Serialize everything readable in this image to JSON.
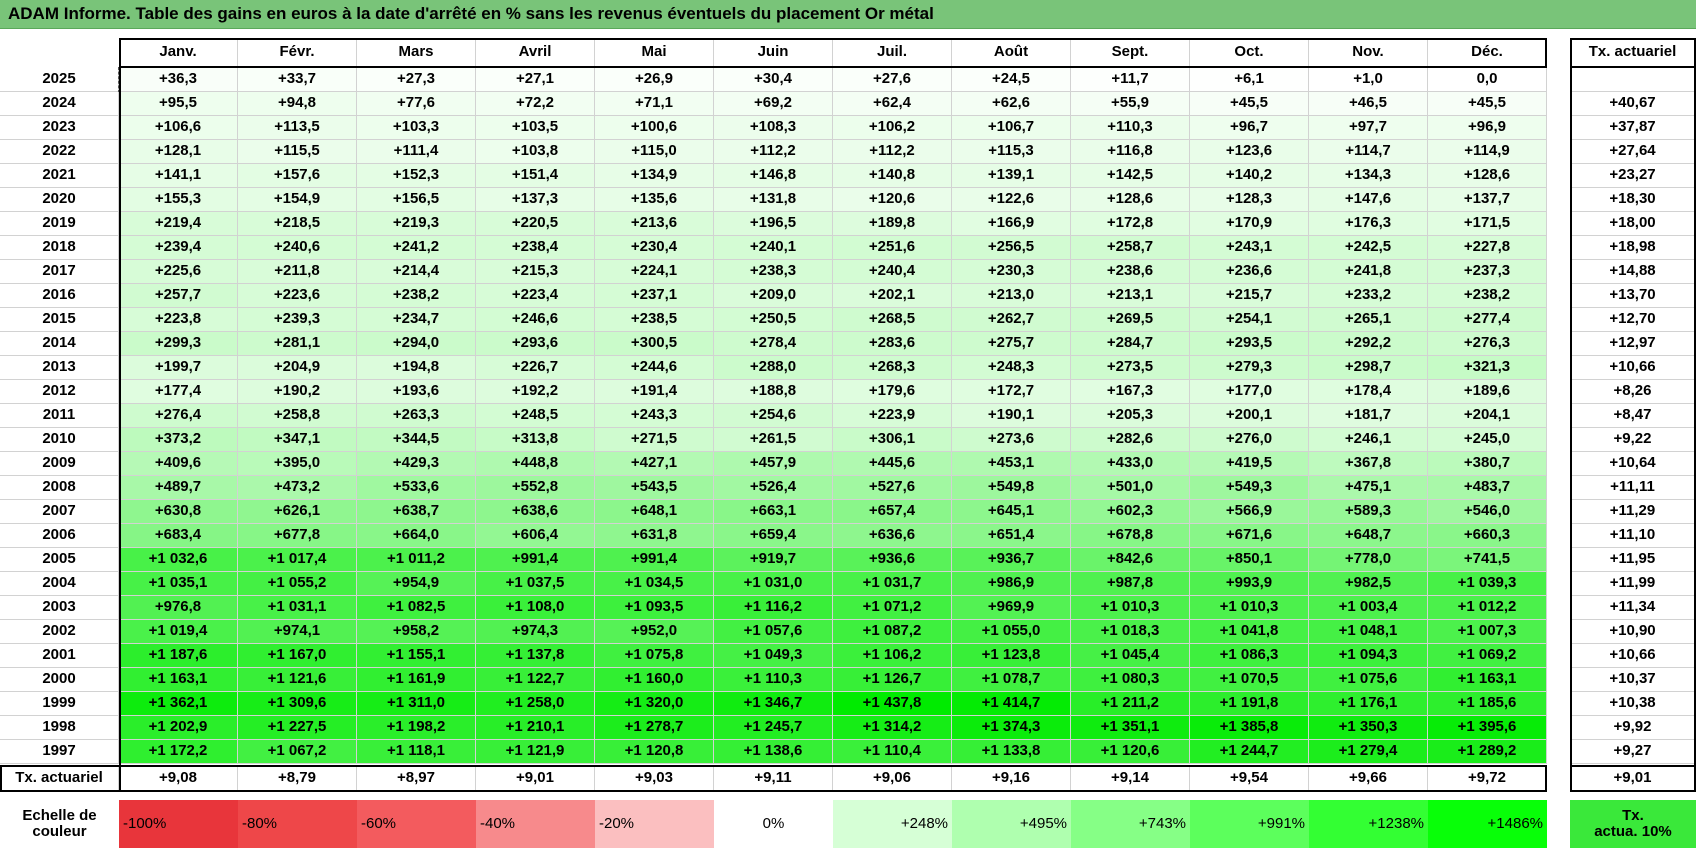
{
  "header": {
    "title": "ADAM Informe. Table des gains en euros à la date d'arrêté en % sans les revenus éventuels du placement Or métal"
  },
  "table": {
    "columns": [
      "Janv.",
      "Févr.",
      "Mars",
      "Avril",
      "Mai",
      "Juin",
      "Juil.",
      "Août",
      "Sept.",
      "Oct.",
      "Nov.",
      "Déc."
    ],
    "rate_header": "Tx. actuariel",
    "rows": [
      {
        "year": "2025",
        "values": [
          "+36,3",
          "+33,7",
          "+27,3",
          "+27,1",
          "+26,9",
          "+30,4",
          "+27,6",
          "+24,5",
          "+11,7",
          "+6,1",
          "+1,0",
          "0,0"
        ],
        "rate": null
      },
      {
        "year": "2024",
        "values": [
          "+95,5",
          "+94,8",
          "+77,6",
          "+72,2",
          "+71,1",
          "+69,2",
          "+62,4",
          "+62,6",
          "+55,9",
          "+45,5",
          "+46,5",
          "+45,5"
        ],
        "rate": "+40,67"
      },
      {
        "year": "2023",
        "values": [
          "+106,6",
          "+113,5",
          "+103,3",
          "+103,5",
          "+100,6",
          "+108,3",
          "+106,2",
          "+106,7",
          "+110,3",
          "+96,7",
          "+97,7",
          "+96,9"
        ],
        "rate": "+37,87"
      },
      {
        "year": "2022",
        "values": [
          "+128,1",
          "+115,5",
          "+111,4",
          "+103,8",
          "+115,0",
          "+112,2",
          "+112,2",
          "+115,3",
          "+116,8",
          "+123,6",
          "+114,7",
          "+114,9"
        ],
        "rate": "+27,64"
      },
      {
        "year": "2021",
        "values": [
          "+141,1",
          "+157,6",
          "+152,3",
          "+151,4",
          "+134,9",
          "+146,8",
          "+140,8",
          "+139,1",
          "+142,5",
          "+140,2",
          "+134,3",
          "+128,6"
        ],
        "rate": "+23,27"
      },
      {
        "year": "2020",
        "values": [
          "+155,3",
          "+154,9",
          "+156,5",
          "+137,3",
          "+135,6",
          "+131,8",
          "+120,6",
          "+122,6",
          "+128,6",
          "+128,3",
          "+147,6",
          "+137,7"
        ],
        "rate": "+18,30"
      },
      {
        "year": "2019",
        "values": [
          "+219,4",
          "+218,5",
          "+219,3",
          "+220,5",
          "+213,6",
          "+196,5",
          "+189,8",
          "+166,9",
          "+172,8",
          "+170,9",
          "+176,3",
          "+171,5"
        ],
        "rate": "+18,00"
      },
      {
        "year": "2018",
        "values": [
          "+239,4",
          "+240,6",
          "+241,2",
          "+238,4",
          "+230,4",
          "+240,1",
          "+251,6",
          "+256,5",
          "+258,7",
          "+243,1",
          "+242,5",
          "+227,8"
        ],
        "rate": "+18,98"
      },
      {
        "year": "2017",
        "values": [
          "+225,6",
          "+211,8",
          "+214,4",
          "+215,3",
          "+224,1",
          "+238,3",
          "+240,4",
          "+230,3",
          "+238,6",
          "+236,6",
          "+241,8",
          "+237,3"
        ],
        "rate": "+14,88"
      },
      {
        "year": "2016",
        "values": [
          "+257,7",
          "+223,6",
          "+238,2",
          "+223,4",
          "+237,1",
          "+209,0",
          "+202,1",
          "+213,0",
          "+213,1",
          "+215,7",
          "+233,2",
          "+238,2"
        ],
        "rate": "+13,70"
      },
      {
        "year": "2015",
        "values": [
          "+223,8",
          "+239,3",
          "+234,7",
          "+246,6",
          "+238,5",
          "+250,5",
          "+268,5",
          "+262,7",
          "+269,5",
          "+254,1",
          "+265,1",
          "+277,4"
        ],
        "rate": "+12,70"
      },
      {
        "year": "2014",
        "values": [
          "+299,3",
          "+281,1",
          "+294,0",
          "+293,6",
          "+300,5",
          "+278,4",
          "+283,6",
          "+275,7",
          "+284,7",
          "+293,5",
          "+292,2",
          "+276,3"
        ],
        "rate": "+12,97"
      },
      {
        "year": "2013",
        "values": [
          "+199,7",
          "+204,9",
          "+194,8",
          "+226,7",
          "+244,6",
          "+288,0",
          "+268,3",
          "+248,3",
          "+273,5",
          "+279,3",
          "+298,7",
          "+321,3"
        ],
        "rate": "+10,66"
      },
      {
        "year": "2012",
        "values": [
          "+177,4",
          "+190,2",
          "+193,6",
          "+192,2",
          "+191,4",
          "+188,8",
          "+179,6",
          "+172,7",
          "+167,3",
          "+177,0",
          "+178,4",
          "+189,6"
        ],
        "rate": "+8,26"
      },
      {
        "year": "2011",
        "values": [
          "+276,4",
          "+258,8",
          "+263,3",
          "+248,5",
          "+243,3",
          "+254,6",
          "+223,9",
          "+190,1",
          "+205,3",
          "+200,1",
          "+181,7",
          "+204,1"
        ],
        "rate": "+8,47"
      },
      {
        "year": "2010",
        "values": [
          "+373,2",
          "+347,1",
          "+344,5",
          "+313,8",
          "+271,5",
          "+261,5",
          "+306,1",
          "+273,6",
          "+282,6",
          "+276,0",
          "+246,1",
          "+245,0"
        ],
        "rate": "+9,22"
      },
      {
        "year": "2009",
        "values": [
          "+409,6",
          "+395,0",
          "+429,3",
          "+448,8",
          "+427,1",
          "+457,9",
          "+445,6",
          "+453,1",
          "+433,0",
          "+419,5",
          "+367,8",
          "+380,7"
        ],
        "rate": "+10,64"
      },
      {
        "year": "2008",
        "values": [
          "+489,7",
          "+473,2",
          "+533,6",
          "+552,8",
          "+543,5",
          "+526,4",
          "+527,6",
          "+549,8",
          "+501,0",
          "+549,3",
          "+475,1",
          "+483,7"
        ],
        "rate": "+11,11"
      },
      {
        "year": "2007",
        "values": [
          "+630,8",
          "+626,1",
          "+638,7",
          "+638,6",
          "+648,1",
          "+663,1",
          "+657,4",
          "+645,1",
          "+602,3",
          "+566,9",
          "+589,3",
          "+546,0"
        ],
        "rate": "+11,29"
      },
      {
        "year": "2006",
        "values": [
          "+683,4",
          "+677,8",
          "+664,0",
          "+606,4",
          "+631,8",
          "+659,4",
          "+636,6",
          "+651,4",
          "+678,8",
          "+671,6",
          "+648,7",
          "+660,3"
        ],
        "rate": "+11,10"
      },
      {
        "year": "2005",
        "values": [
          "+1 032,6",
          "+1 017,4",
          "+1 011,2",
          "+991,4",
          "+991,4",
          "+919,7",
          "+936,6",
          "+936,7",
          "+842,6",
          "+850,1",
          "+778,0",
          "+741,5"
        ],
        "rate": "+11,95"
      },
      {
        "year": "2004",
        "values": [
          "+1 035,1",
          "+1 055,2",
          "+954,9",
          "+1 037,5",
          "+1 034,5",
          "+1 031,0",
          "+1 031,7",
          "+986,9",
          "+987,8",
          "+993,9",
          "+982,5",
          "+1 039,3"
        ],
        "rate": "+11,99"
      },
      {
        "year": "2003",
        "values": [
          "+976,8",
          "+1 031,1",
          "+1 082,5",
          "+1 108,0",
          "+1 093,5",
          "+1 116,2",
          "+1 071,2",
          "+969,9",
          "+1 010,3",
          "+1 010,3",
          "+1 003,4",
          "+1 012,2"
        ],
        "rate": "+11,34"
      },
      {
        "year": "2002",
        "values": [
          "+1 019,4",
          "+974,1",
          "+958,2",
          "+974,3",
          "+952,0",
          "+1 057,6",
          "+1 087,2",
          "+1 055,0",
          "+1 018,3",
          "+1 041,8",
          "+1 048,1",
          "+1 007,3"
        ],
        "rate": "+10,90"
      },
      {
        "year": "2001",
        "values": [
          "+1 187,6",
          "+1 167,0",
          "+1 155,1",
          "+1 137,8",
          "+1 075,8",
          "+1 049,3",
          "+1 106,2",
          "+1 123,8",
          "+1 045,4",
          "+1 086,3",
          "+1 094,3",
          "+1 069,2"
        ],
        "rate": "+10,66"
      },
      {
        "year": "2000",
        "values": [
          "+1 163,1",
          "+1 121,6",
          "+1 161,9",
          "+1 122,7",
          "+1 160,0",
          "+1 110,3",
          "+1 126,7",
          "+1 078,7",
          "+1 080,3",
          "+1 070,5",
          "+1 075,6",
          "+1 163,1"
        ],
        "rate": "+10,37"
      },
      {
        "year": "1999",
        "values": [
          "+1 362,1",
          "+1 309,6",
          "+1 311,0",
          "+1 258,0",
          "+1 320,0",
          "+1 346,7",
          "+1 437,8",
          "+1 414,7",
          "+1 211,2",
          "+1 191,8",
          "+1 176,1",
          "+1 185,6"
        ],
        "rate": "+10,38"
      },
      {
        "year": "1998",
        "values": [
          "+1 202,9",
          "+1 227,5",
          "+1 198,2",
          "+1 210,1",
          "+1 278,7",
          "+1 245,7",
          "+1 314,2",
          "+1 374,3",
          "+1 351,1",
          "+1 385,8",
          "+1 350,3",
          "+1 395,6"
        ],
        "rate": "+9,92"
      },
      {
        "year": "1997",
        "values": [
          "+1 172,2",
          "+1 067,2",
          "+1 118,1",
          "+1 121,9",
          "+1 120,8",
          "+1 138,6",
          "+1 110,4",
          "+1 133,8",
          "+1 120,6",
          "+1 244,7",
          "+1 279,4",
          "+1 289,2"
        ],
        "rate": "+9,27"
      }
    ],
    "footer": {
      "label": "Tx. actuariel",
      "values": [
        "+9,08",
        "+8,79",
        "+8,97",
        "+9,01",
        "+9,03",
        "+9,11",
        "+9,06",
        "+9,16",
        "+9,14",
        "+9,54",
        "+9,66",
        "+9,72"
      ],
      "rate": "+9,01"
    }
  },
  "legend": {
    "label": "Echelle de\ncouleur",
    "items": [
      {
        "label": "-100%",
        "color": "#e8353b"
      },
      {
        "label": "-80%",
        "color": "#ee4749"
      },
      {
        "label": "-60%",
        "color": "#f35b5e"
      },
      {
        "label": "-40%",
        "color": "#f78a8c"
      },
      {
        "label": "-20%",
        "color": "#fbbfc0"
      },
      {
        "label": "0%",
        "color": "#ffffff"
      },
      {
        "label": "+248%",
        "color": "#d6ffd6"
      },
      {
        "label": "+495%",
        "color": "#afffaf"
      },
      {
        "label": "+743%",
        "color": "#86ff86"
      },
      {
        "label": "+991%",
        "color": "#5cff5c"
      },
      {
        "label": "+1238%",
        "color": "#33ff33"
      },
      {
        "label": "+1486%",
        "color": "#08ff08"
      }
    ],
    "rate_box": {
      "label": "Tx.\nactua. 10%",
      "color": "#3ae83a"
    }
  }
}
